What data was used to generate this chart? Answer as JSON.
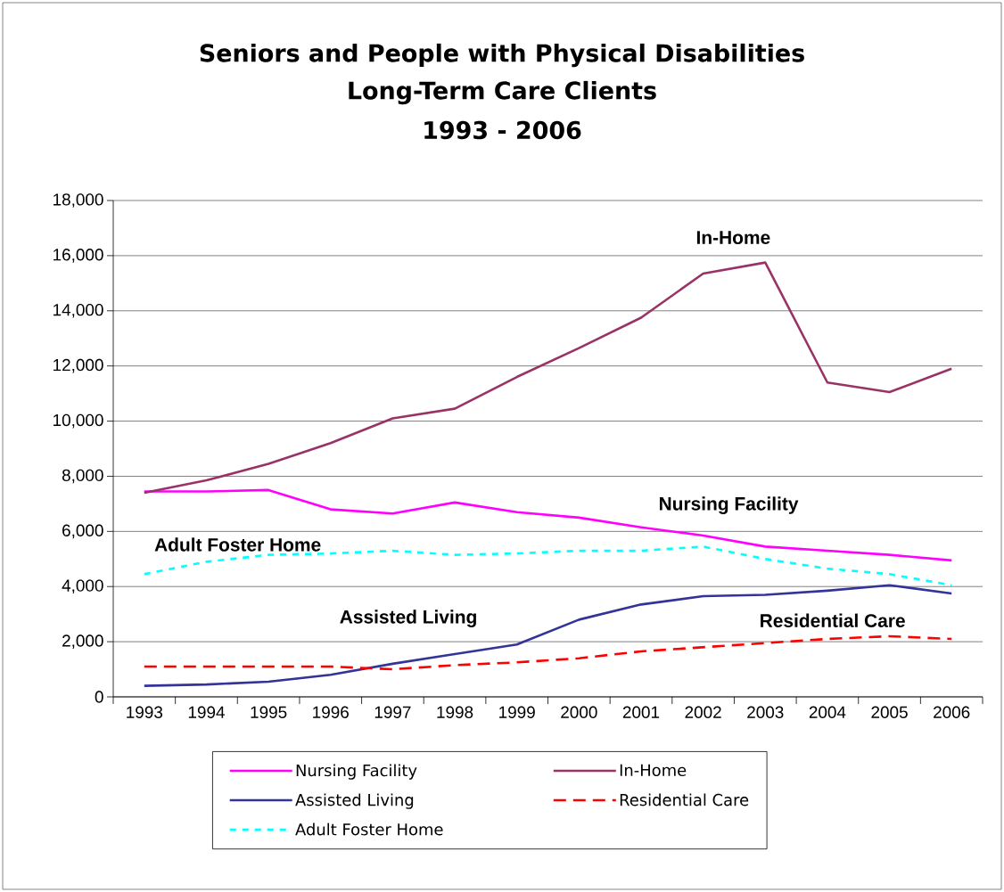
{
  "chart_data": {
    "type": "line",
    "title": "Seniors and People with Physical Disabilities",
    "subtitle": "Long-Term Care Clients",
    "categories": [
      "1993",
      "1994",
      "1995",
      "1996",
      "1997",
      "1998",
      "1999",
      "2000",
      "2001",
      "2002",
      "2003",
      "2004",
      "2005",
      "2006"
    ],
    "series": [
      {
        "name": "Nursing Facility",
        "color": "#ff00ff",
        "line_style": "solid",
        "values": [
          7450,
          7450,
          7500,
          6800,
          6650,
          7050,
          6700,
          6500,
          6150,
          5850,
          5450,
          5300,
          5150,
          4950
        ]
      },
      {
        "name": "In-Home",
        "color": "#993366",
        "line_style": "solid",
        "values": [
          7400,
          7850,
          8450,
          9200,
          10100,
          10450,
          11600,
          12650,
          13750,
          15350,
          15750,
          11400,
          11050,
          11900
        ]
      },
      {
        "name": "Assisted Living",
        "color": "#333399",
        "line_style": "solid",
        "values": [
          400,
          450,
          550,
          800,
          1200,
          1550,
          1900,
          2800,
          3350,
          3650,
          3700,
          3850,
          4050,
          3750
        ]
      },
      {
        "name": "Residential Care",
        "color": "#ff0000",
        "line_style": "dashed",
        "values": [
          1100,
          1100,
          1100,
          1100,
          1000,
          1150,
          1250,
          1400,
          1650,
          1800,
          1950,
          2100,
          2200,
          2100
        ]
      },
      {
        "name": "Adult Foster Home",
        "color": "#00ffff",
        "line_style": "dotted",
        "values": [
          4450,
          4900,
          5150,
          5200,
          5300,
          5150,
          5200,
          5300,
          5300,
          5450,
          5000,
          4650,
          4450,
          4050
        ]
      }
    ],
    "ylim": [
      0,
      18000
    ],
    "yticks": [
      0,
      {
        "value": 2000,
        "label": "2,000"
      },
      {
        "value": 4000,
        "label": "4,000"
      },
      {
        "value": 6000,
        "label": "6,000"
      },
      {
        "value": 8000,
        "label": "8,000"
      },
      {
        "value": 10000,
        "label": "10,000"
      },
      {
        "value": 12000,
        "label": "12,000"
      },
      {
        "value": 14000,
        "label": "14,000"
      },
      {
        "value": 16000,
        "label": "16,000"
      },
      {
        "value": 18000,
        "label": "18,000"
      }
    ],
    "grid": "y",
    "legend": "bottom",
    "marker": "none",
    "annotations": [
      "1993 - 2006",
      "In-Home",
      "Nursing Facility",
      "Adult Foster Home",
      "Assisted Living",
      "Residential Care"
    ]
  }
}
